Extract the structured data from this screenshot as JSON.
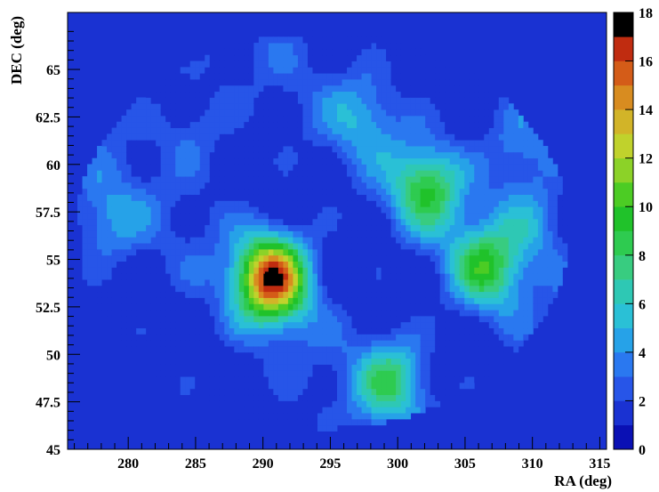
{
  "chart_data": {
    "type": "heatmap",
    "title": "",
    "xlabel": "RA (deg)",
    "ylabel": "DEC (deg)",
    "xlim": [
      275.5,
      315.5
    ],
    "ylim": [
      45,
      68
    ],
    "x_ticks": [
      "280",
      "285",
      "290",
      "295",
      "300",
      "305",
      "310",
      "315"
    ],
    "y_ticks": [
      "45",
      "47.5",
      "50",
      "52.5",
      "55",
      "57.5",
      "60",
      "62.5",
      "65"
    ],
    "zlim": [
      0,
      18
    ],
    "z_ticks": [
      "0",
      "2",
      "4",
      "6",
      "8",
      "10",
      "12",
      "14",
      "16",
      "18"
    ],
    "background_value": 1,
    "footprint": {
      "center_ra": 294.4,
      "center_dec": 56.5,
      "half_width_ra": 18.3,
      "half_height_dec": 10.4
    },
    "peak": {
      "ra": 290.5,
      "dec": 54.0,
      "value": 18
    },
    "hotspots": [
      {
        "ra": 290.7,
        "dec": 54.0,
        "value": 17
      },
      {
        "ra": 302.2,
        "dec": 58.8,
        "value": 9
      },
      {
        "ra": 306.5,
        "dec": 54.6,
        "value": 9
      },
      {
        "ra": 299.5,
        "dec": 48.7,
        "value": 8
      },
      {
        "ra": 310.0,
        "dec": 57.0,
        "value": 5
      },
      {
        "ra": 297.5,
        "dec": 62.5,
        "value": 5
      },
      {
        "ra": 278.5,
        "dec": 57.0,
        "value": 5
      },
      {
        "ra": 309.0,
        "dec": 60.8,
        "value": 5
      },
      {
        "ra": 285.0,
        "dec": 62.0,
        "value": 4
      }
    ],
    "colorbar": {
      "placement": "right",
      "palette": [
        "#0a10b4",
        "#1a32d2",
        "#2755e8",
        "#2a78f0",
        "#26a2e8",
        "#2ac0d6",
        "#2ec8b4",
        "#38cc80",
        "#2ecb50",
        "#20c22a",
        "#4ccc24",
        "#8cd228",
        "#c0d22c",
        "#d2b428",
        "#d88c20",
        "#d45c18",
        "#c02c10",
        "#000000"
      ]
    },
    "grid": false
  }
}
